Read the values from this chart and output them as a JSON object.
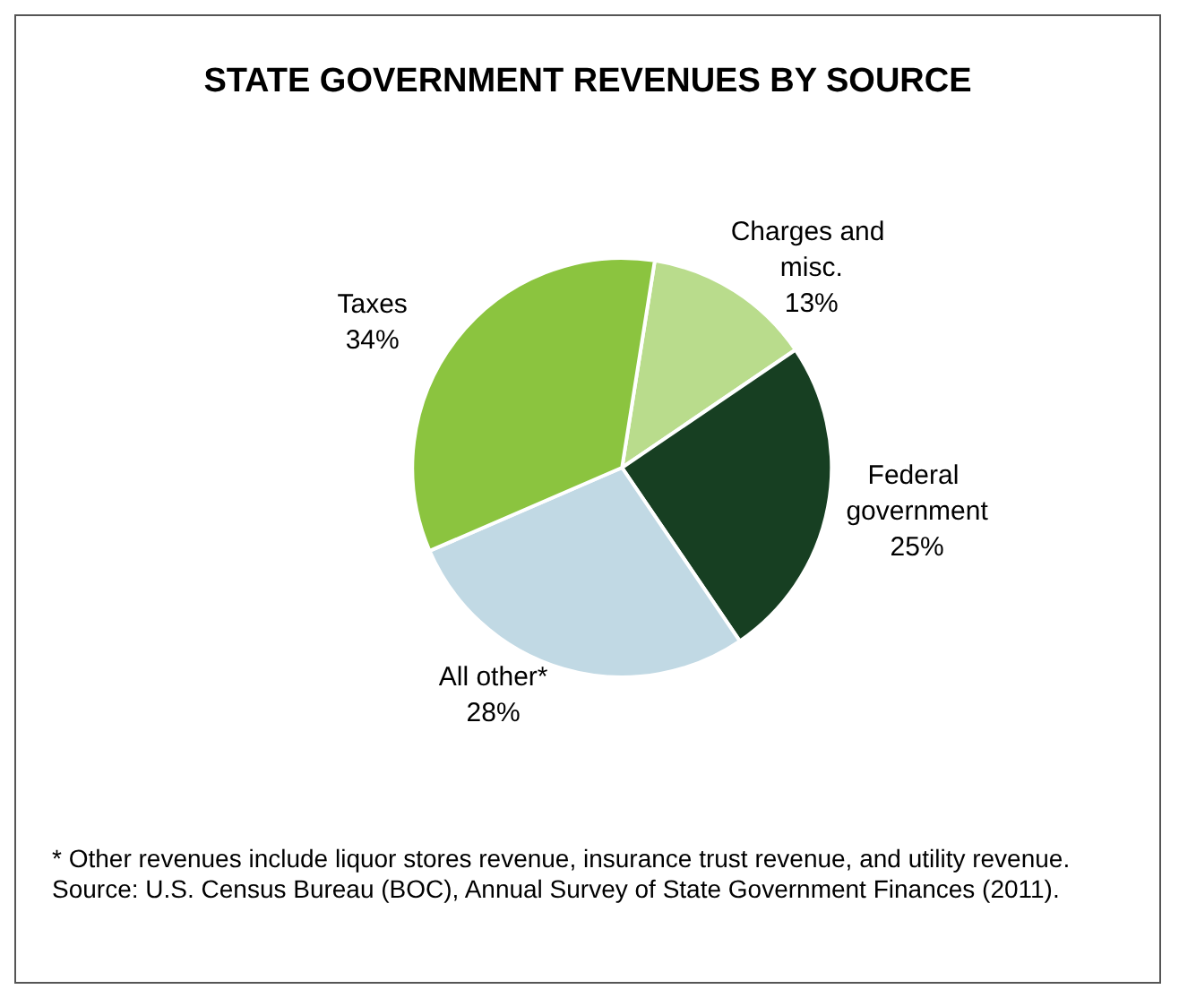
{
  "chart_data": {
    "type": "pie",
    "title": "STATE GOVERNMENT REVENUES BY SOURCE",
    "categories": [
      "Charges and misc.",
      "Federal government",
      "All other*",
      "Taxes"
    ],
    "values": [
      13,
      25,
      28,
      34
    ],
    "colors": [
      "#b9dc8c",
      "#173f22",
      "#c1d9e4",
      "#8bc43f"
    ],
    "value_labels": [
      "13%",
      "25%",
      "28%",
      "34%"
    ],
    "legend": false,
    "annotations": [
      "* Other revenues include liquor stores revenue, insurance trust revenue, and utility revenue.",
      "Source: U.S. Census Bureau (BOC), Annual Survey of State Government Finances (2011)."
    ]
  }
}
